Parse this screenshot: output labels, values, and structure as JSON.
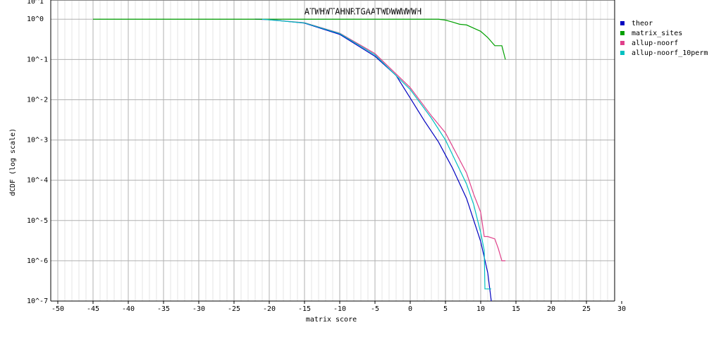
{
  "chart_data": {
    "type": "line",
    "title": "ATWHWTAHNRTGAATWDWWWWWH",
    "xlabel": "matrix score",
    "ylabel": "dCDF (log scale)",
    "ylog": true,
    "grid": true,
    "legend": "right",
    "xlim": [
      -51,
      29
    ],
    "ylim": [
      1e-07,
      3
    ],
    "xticks": [
      -50,
      -45,
      -40,
      -35,
      -30,
      -25,
      -20,
      -15,
      -10,
      -5,
      0,
      5,
      10,
      15,
      20,
      25,
      30
    ],
    "yticks": [
      {
        "value": 1e-07,
        "label": "10^-7"
      },
      {
        "value": 1e-06,
        "label": "10^-6"
      },
      {
        "value": 1e-05,
        "label": "10^-5"
      },
      {
        "value": 0.0001,
        "label": "10^-4"
      },
      {
        "value": 0.001,
        "label": "10^-3"
      },
      {
        "value": 0.01,
        "label": "10^-2"
      },
      {
        "value": 0.1,
        "label": "10^-1"
      },
      {
        "value": 1,
        "label": "10^0"
      },
      {
        "value": 10,
        "label": "10^1"
      }
    ],
    "series": [
      {
        "name": "theor",
        "color": "#0000c0",
        "x": [
          -22,
          -20,
          -15,
          -10,
          -5,
          -2,
          0,
          2,
          4,
          6,
          8,
          10,
          11,
          11.5
        ],
        "values": [
          1,
          0.98,
          0.8,
          0.42,
          0.12,
          0.04,
          0.011,
          0.003,
          0.0009,
          0.0002,
          3.5e-05,
          3e-06,
          5e-07,
          1e-07
        ]
      },
      {
        "name": "matrix_sites",
        "color": "#00a000",
        "x": [
          -45,
          4,
          5,
          6,
          7,
          8,
          9,
          10,
          11,
          12,
          13,
          13.5
        ],
        "values": [
          1,
          1,
          0.95,
          0.85,
          0.75,
          0.72,
          0.6,
          0.5,
          0.35,
          0.22,
          0.22,
          0.1
        ]
      },
      {
        "name": "allup-noorf",
        "color": "#e0408a",
        "x": [
          -21,
          -15,
          -10,
          -5,
          0,
          3,
          5,
          8,
          9,
          10,
          10.5,
          11,
          12,
          12.5,
          13,
          13.5
        ],
        "values": [
          1,
          0.82,
          0.45,
          0.14,
          0.02,
          0.004,
          0.0015,
          0.00015,
          4.5e-05,
          1.6e-05,
          4e-06,
          4e-06,
          3.5e-06,
          2e-06,
          1e-06,
          1e-06
        ]
      },
      {
        "name": "allup-noorf_10perm",
        "color": "#00c0c0",
        "x": [
          -21,
          -15,
          -10,
          -5,
          0,
          3,
          5,
          8,
          9,
          10,
          10.5,
          10.6,
          11.5
        ],
        "values": [
          1,
          0.81,
          0.44,
          0.13,
          0.018,
          0.0035,
          0.001,
          8e-05,
          2.5e-05,
          5e-06,
          1.8e-06,
          2e-07,
          2e-07
        ]
      }
    ]
  }
}
